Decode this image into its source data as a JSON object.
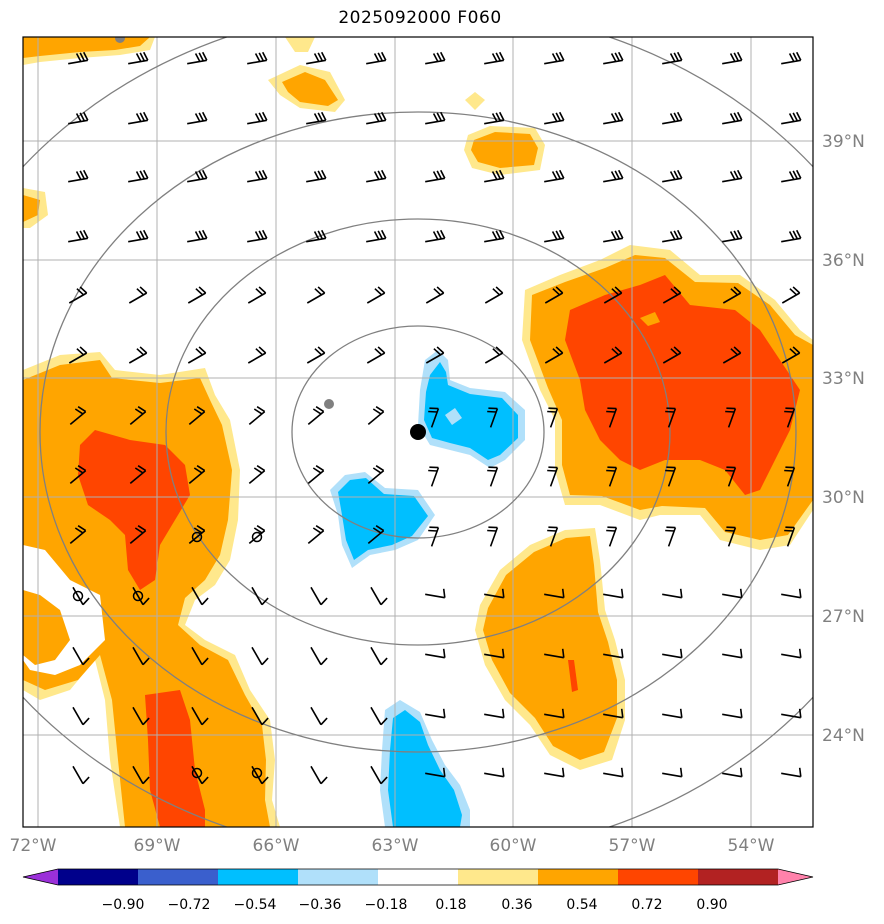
{
  "title": "2025092000 F060",
  "lon_labels": [
    "72°W",
    "69°W",
    "66°W",
    "63°W",
    "60°W",
    "57°W",
    "54°W"
  ],
  "lat_labels": [
    "39°N",
    "36°N",
    "33°N",
    "30°N",
    "27°N",
    "24°N"
  ],
  "colorbar": {
    "ticks": [
      "−0.90",
      "−0.72",
      "−0.54",
      "−0.36",
      "−0.18",
      "0.18",
      "0.36",
      "0.54",
      "0.72",
      "0.90"
    ],
    "colors": [
      "#9b30d9",
      "#00008b",
      "#3a5fcd",
      "#00bfff",
      "#b0e0fa",
      "#ffffff",
      "#ffe88c",
      "#ffa500",
      "#ff4500",
      "#b22222",
      "#ff82ab"
    ]
  },
  "fill_colors": {
    "light_yellow": "#ffe88c",
    "orange": "#ffa500",
    "red_orange": "#ff4500",
    "light_blue": "#b0e0fa",
    "blue": "#00bfff"
  },
  "markers": {
    "storm_center": "black-dot",
    "gray_dot": "gray-dot"
  }
}
